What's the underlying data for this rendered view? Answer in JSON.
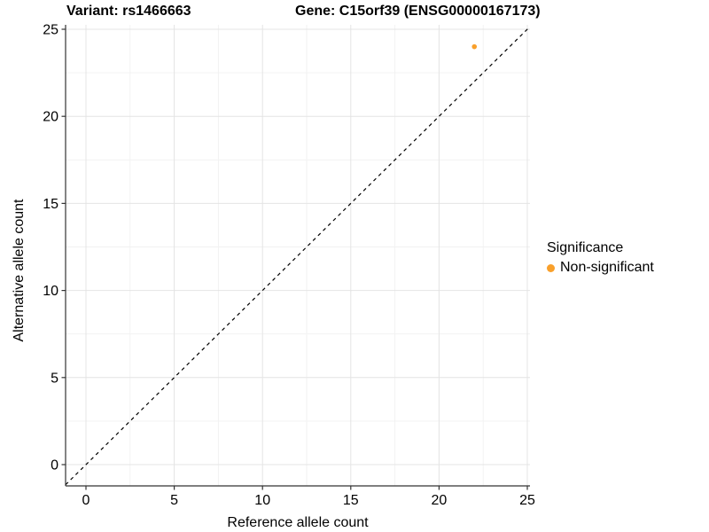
{
  "titles": {
    "variant": "Variant: rs1466663",
    "gene": "Gene: C15orf39 (ENSG00000167173)"
  },
  "axes": {
    "x": {
      "label": "Reference allele count",
      "tick_labels": [
        "0",
        "5",
        "10",
        "15",
        "20",
        "25"
      ]
    },
    "y": {
      "label": "Alternative allele count",
      "tick_labels": [
        "0",
        "5",
        "10",
        "15",
        "20",
        "25"
      ]
    }
  },
  "legend": {
    "title": "Significance",
    "items": [
      {
        "label": "Non-significant",
        "color": "#F9A02B"
      }
    ]
  },
  "chart_data": {
    "type": "scatter",
    "title": "Variant: rs1466663   Gene: C15orf39 (ENSG00000167173)",
    "xlabel": "Reference allele count",
    "ylabel": "Alternative allele count",
    "xlim": [
      0,
      25
    ],
    "ylim": [
      0,
      25
    ],
    "display_xlim": [
      -1.25,
      25.25
    ],
    "display_ylim": [
      -1.25,
      25.25
    ],
    "grid": true,
    "legend_position": "right",
    "major_ticks": [
      0,
      5,
      10,
      15,
      20,
      25
    ],
    "minor_ticks": [
      2.5,
      7.5,
      12.5,
      17.5,
      22.5
    ],
    "series": [
      {
        "name": "Non-significant",
        "color": "#F9A02B",
        "points": [
          {
            "x": 22,
            "y": 24
          }
        ]
      }
    ],
    "reference_line": {
      "kind": "identity",
      "equation": "y = x",
      "style": "dashed",
      "color": "#000000"
    },
    "colors": {
      "grid_major": "#E4E4E4",
      "grid_minor": "#F1F1F1",
      "axis_line": "#333333",
      "text": "#000000",
      "background": "#FFFFFF"
    }
  }
}
